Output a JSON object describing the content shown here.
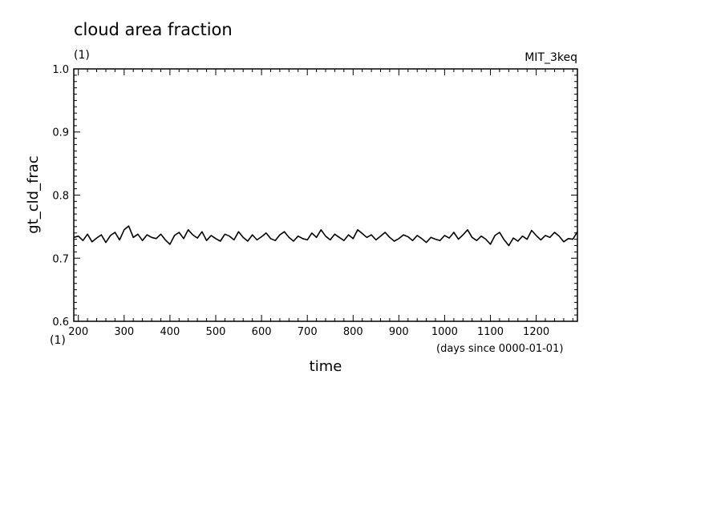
{
  "chart_data": {
    "type": "line",
    "title": "cloud area fraction",
    "units_top": "(1)",
    "units_bottom": "(1)",
    "experiment": "MIT_3keq",
    "xlabel": "time",
    "xunits": "(days since 0000-01-01)",
    "ylabel": "gt_cld_frac",
    "xlim": [
      190,
      1290
    ],
    "ylim": [
      0.6,
      1.0
    ],
    "xticks": [
      "200",
      "300",
      "400",
      "500",
      "600",
      "700",
      "800",
      "900",
      "1000",
      "1100",
      "1200"
    ],
    "yticks": [
      "0.6",
      "0.7",
      "0.8",
      "0.9",
      "1.0"
    ],
    "grid": false,
    "series": [
      {
        "color": "#000000",
        "x": [
          190,
          200,
          210,
          220,
          230,
          240,
          250,
          260,
          270,
          280,
          290,
          300,
          310,
          320,
          330,
          340,
          350,
          360,
          370,
          380,
          390,
          400,
          410,
          420,
          430,
          440,
          450,
          460,
          470,
          480,
          490,
          500,
          510,
          520,
          530,
          540,
          550,
          560,
          570,
          580,
          590,
          600,
          610,
          620,
          630,
          640,
          650,
          660,
          670,
          680,
          690,
          700,
          710,
          720,
          730,
          740,
          750,
          760,
          770,
          780,
          790,
          800,
          810,
          820,
          830,
          840,
          850,
          860,
          870,
          880,
          890,
          900,
          910,
          920,
          930,
          940,
          950,
          960,
          970,
          980,
          990,
          1000,
          1010,
          1020,
          1030,
          1040,
          1050,
          1060,
          1070,
          1080,
          1090,
          1100,
          1110,
          1120,
          1130,
          1140,
          1150,
          1160,
          1170,
          1180,
          1190,
          1200,
          1210,
          1220,
          1230,
          1240,
          1250,
          1260,
          1270,
          1280,
          1290
        ],
        "y": [
          0.733,
          0.735,
          0.728,
          0.738,
          0.726,
          0.732,
          0.737,
          0.725,
          0.736,
          0.741,
          0.729,
          0.745,
          0.751,
          0.733,
          0.738,
          0.728,
          0.737,
          0.733,
          0.731,
          0.738,
          0.729,
          0.722,
          0.736,
          0.741,
          0.731,
          0.745,
          0.737,
          0.732,
          0.742,
          0.728,
          0.736,
          0.731,
          0.727,
          0.738,
          0.735,
          0.729,
          0.742,
          0.733,
          0.727,
          0.737,
          0.729,
          0.734,
          0.74,
          0.731,
          0.728,
          0.737,
          0.742,
          0.733,
          0.727,
          0.735,
          0.731,
          0.729,
          0.74,
          0.733,
          0.745,
          0.735,
          0.729,
          0.738,
          0.733,
          0.728,
          0.737,
          0.731,
          0.745,
          0.739,
          0.733,
          0.737,
          0.729,
          0.735,
          0.741,
          0.733,
          0.727,
          0.731,
          0.737,
          0.734,
          0.728,
          0.736,
          0.731,
          0.725,
          0.733,
          0.73,
          0.728,
          0.736,
          0.732,
          0.741,
          0.73,
          0.737,
          0.745,
          0.733,
          0.728,
          0.735,
          0.73,
          0.722,
          0.736,
          0.741,
          0.729,
          0.72,
          0.732,
          0.727,
          0.735,
          0.73,
          0.744,
          0.736,
          0.729,
          0.736,
          0.733,
          0.741,
          0.735,
          0.726,
          0.731,
          0.73,
          0.742
        ]
      }
    ]
  }
}
